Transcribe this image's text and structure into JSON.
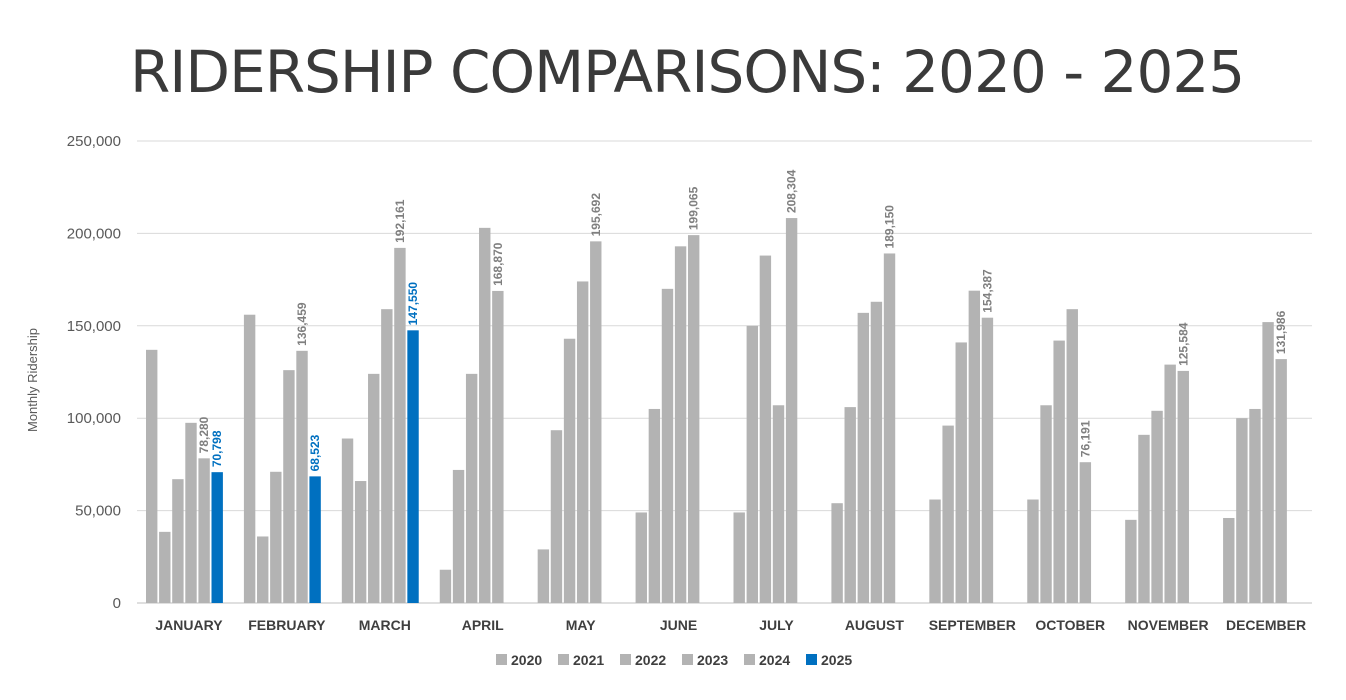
{
  "chart_data": {
    "type": "bar",
    "title": "RIDERSHIP COMPARISONS: 2020 - 2025",
    "xlabel": "",
    "ylabel": "Monthly Ridership",
    "ylim": [
      0,
      250000
    ],
    "yticks": [
      "0",
      "50,000",
      "100,000",
      "150,000",
      "200,000",
      "250,000"
    ],
    "grid": true,
    "legend_position": "bottom",
    "categories": [
      "JANUARY",
      "FEBRUARY",
      "MARCH",
      "APRIL",
      "MAY",
      "JUNE",
      "JULY",
      "AUGUST",
      "SEPTEMBER",
      "OCTOBER",
      "NOVEMBER",
      "DECEMBER"
    ],
    "series": [
      {
        "name": "2020",
        "color": "#b3b3b3",
        "values": [
          137000,
          156000,
          89000,
          18000,
          29000,
          49000,
          49000,
          54000,
          56000,
          56000,
          45000,
          46000
        ]
      },
      {
        "name": "2021",
        "color": "#b3b3b3",
        "values": [
          38500,
          36000,
          66000,
          72000,
          93500,
          105000,
          150000,
          106000,
          96000,
          107000,
          91000,
          100000
        ]
      },
      {
        "name": "2022",
        "color": "#b3b3b3",
        "values": [
          67000,
          71000,
          124000,
          124000,
          143000,
          170000,
          188000,
          157000,
          141000,
          142000,
          104000,
          105000
        ]
      },
      {
        "name": "2023",
        "color": "#b3b3b3",
        "values": [
          97500,
          126000,
          159000,
          203000,
          174000,
          193000,
          107000,
          163000,
          169000,
          159000,
          129000,
          152000
        ]
      },
      {
        "name": "2024",
        "color": "#b3b3b3",
        "values": [
          78280,
          136459,
          192161,
          168870,
          195692,
          199065,
          208304,
          189150,
          154387,
          76191,
          125584,
          131986
        ]
      },
      {
        "name": "2025",
        "color": "#0070c0",
        "values": [
          70798,
          68523,
          147550,
          null,
          null,
          null,
          null,
          null,
          null,
          null,
          null,
          null
        ]
      }
    ],
    "data_labels": {
      "2024": [
        "78,280",
        "136,459",
        "192,161",
        "168,870",
        "195,692",
        "199,065",
        "208,304",
        "189,150",
        "154,387",
        "76,191",
        "125,584",
        "131,986"
      ],
      "2025": [
        "70,798",
        "68,523",
        "147,550",
        null,
        null,
        null,
        null,
        null,
        null,
        null,
        null,
        null
      ]
    },
    "label_colors": {
      "2024": "#7f7f7f",
      "2025": "#0070c0"
    }
  }
}
